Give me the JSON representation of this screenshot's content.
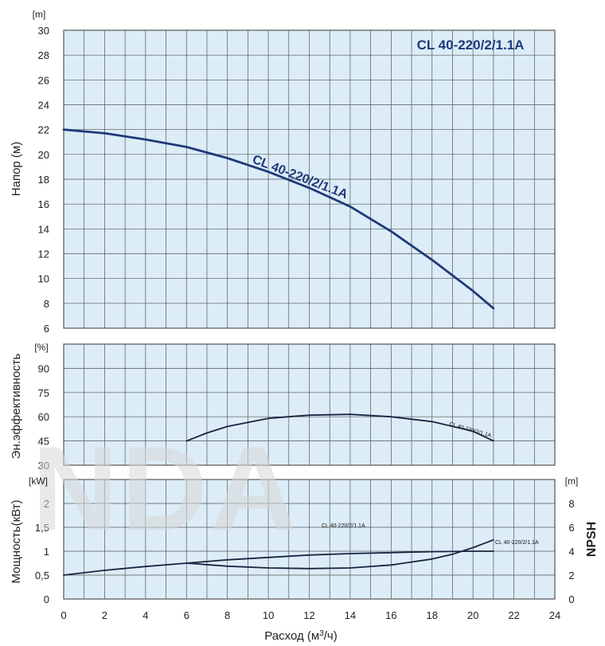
{
  "model": "CL 40-220/2/1.1A",
  "colors": {
    "plot_bg": "#dcedf8",
    "grid": "#555555",
    "head_curve": "#1f3a7a",
    "other_curves": "#1a2440",
    "watermark": "#d8d8d8"
  },
  "watermark": "NDA",
  "x_axis": {
    "label": "Расход (м³/ч)",
    "min": 0,
    "max": 24,
    "ticks": [
      "0",
      "2",
      "4",
      "6",
      "8",
      "10",
      "12",
      "14",
      "16",
      "18",
      "20",
      "22",
      "24"
    ]
  },
  "chart_data": [
    {
      "type": "line",
      "panel": "head",
      "title": "CL 40-220/2/1.1A",
      "ylabel": "Напор (м)",
      "unit": "[m]",
      "xlim": [
        0,
        24
      ],
      "ylim": [
        6,
        30
      ],
      "yticks": [
        "6",
        "8",
        "10",
        "12",
        "14",
        "16",
        "18",
        "20",
        "22",
        "24",
        "26",
        "28",
        "30"
      ],
      "series": [
        {
          "name": "CL 40-220/2/1.1A",
          "x": [
            0,
            2,
            4,
            6,
            8,
            10,
            12,
            14,
            16,
            18,
            20,
            21
          ],
          "y": [
            22,
            21.7,
            21.2,
            20.6,
            19.7,
            18.6,
            17.3,
            15.8,
            13.8,
            11.5,
            9.0,
            7.6
          ]
        }
      ]
    },
    {
      "type": "line",
      "panel": "efficiency",
      "ylabel": "Эн.эффективность",
      "unit": "[%]",
      "xlim": [
        0,
        24
      ],
      "ylim": [
        30,
        105
      ],
      "yticks": [
        "30",
        "45",
        "60",
        "75",
        "90"
      ],
      "series": [
        {
          "name": "CL 40-220/2/1.1A",
          "x": [
            6,
            7,
            8,
            10,
            12,
            14,
            16,
            18,
            20,
            21
          ],
          "y": [
            45,
            50,
            54,
            59,
            61,
            61.5,
            60,
            57,
            51,
            45
          ]
        }
      ]
    },
    {
      "type": "line",
      "panel": "power",
      "ylabel": "Мощность(кВт)",
      "unit": "[kW]",
      "right_label": "NPSH",
      "right_unit": "[m]",
      "xlim": [
        0,
        24
      ],
      "ylim": [
        0,
        2.5
      ],
      "yticks": [
        "0",
        "0,5",
        "1",
        "1,5",
        "2"
      ],
      "right_ylim": [
        0,
        10
      ],
      "right_yticks": [
        "0",
        "2",
        "4",
        "6",
        "8"
      ],
      "series": [
        {
          "name": "CL 40-220/2/1.1A",
          "axis": "left",
          "x": [
            0,
            2,
            4,
            6,
            8,
            10,
            12,
            14,
            16,
            18,
            20,
            21
          ],
          "y": [
            0.5,
            0.6,
            0.68,
            0.75,
            0.82,
            0.87,
            0.92,
            0.95,
            0.97,
            0.99,
            1.0,
            1.0
          ]
        },
        {
          "name": "CL 40-220/2/1.1A",
          "axis": "right",
          "x": [
            6,
            8,
            10,
            12,
            14,
            16,
            18,
            19,
            20,
            21
          ],
          "y": [
            3.0,
            2.75,
            2.6,
            2.55,
            2.6,
            2.85,
            3.35,
            3.75,
            4.3,
            4.95
          ]
        }
      ]
    }
  ]
}
